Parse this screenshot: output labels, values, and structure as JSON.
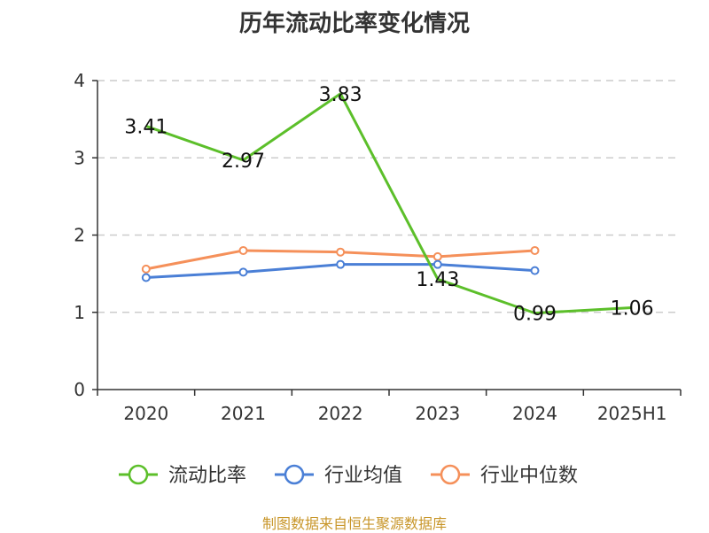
{
  "title": "历年流动比率变化情况",
  "source": "制图数据来自恒生聚源数据库",
  "chart_data": {
    "type": "line",
    "categories": [
      "2020",
      "2021",
      "2022",
      "2023",
      "2024",
      "2025H1"
    ],
    "ylim": [
      0,
      4
    ],
    "yticks": [
      "0",
      "1",
      "2",
      "3",
      "4"
    ],
    "grid": true,
    "legend_position": "bottom",
    "series": [
      {
        "name": "流动比率",
        "color": "#5cbf2a",
        "values": [
          3.41,
          2.97,
          3.83,
          1.43,
          0.99,
          1.06
        ],
        "labels": [
          "3.41",
          "2.97",
          "3.83",
          "1.43",
          "0.99",
          "1.06"
        ]
      },
      {
        "name": "行业均值",
        "color": "#4a7fd6",
        "values": [
          1.45,
          1.52,
          1.62,
          1.62,
          1.54,
          null
        ]
      },
      {
        "name": "行业中位数",
        "color": "#f5905a",
        "values": [
          1.56,
          1.8,
          1.78,
          1.72,
          1.8,
          null
        ]
      }
    ]
  }
}
